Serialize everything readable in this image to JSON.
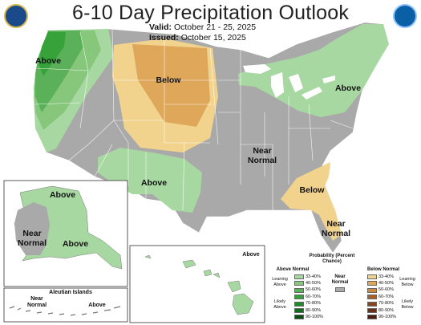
{
  "title": "6-10 Day Precipitation Outlook",
  "valid": {
    "label": "Valid:",
    "value": "October 21 - 25, 2025"
  },
  "issued": {
    "label": "Issued:",
    "value": "October 15, 2025"
  },
  "map_labels": {
    "conus_above_nw": "Above",
    "conus_below_plains": "Below",
    "conus_above_ne": "Above",
    "conus_above_sw": "Above",
    "conus_near_normal_central": "Near Normal",
    "conus_below_se": "Below",
    "conus_near_normal_fl": "Near Normal",
    "ak_above_n": "Above",
    "ak_near_normal": "Near Normal",
    "ak_above_s": "Above",
    "hi_above": "Above",
    "aleutian_title": "Aleutian Islands",
    "aleutian_near_normal": "Near Normal",
    "aleutian_above": "Above"
  },
  "legend": {
    "title": "Probability (Percent Chance)",
    "above_header": "Above Normal",
    "near_header": "Near Normal",
    "below_header": "Below Normal",
    "leaning_above": "Leaning Above",
    "likely_above": "Likely Above",
    "leaning_below": "Leaning Below",
    "likely_below": "Likely Below",
    "bins": [
      "33-40%",
      "40-50%",
      "50-60%",
      "60-70%",
      "70-80%",
      "80-90%",
      "90-100%"
    ],
    "above_colors": [
      "#a7d8a1",
      "#86c77c",
      "#5bb15a",
      "#38a23a",
      "#1f8a2a",
      "#136b1d",
      "#0c4d14"
    ],
    "below_colors": [
      "#f2d38e",
      "#dfa75a",
      "#c98a3c",
      "#a5622b",
      "#86451f",
      "#683018",
      "#4a1e10"
    ],
    "near_color": "#a9a9a9"
  },
  "logos": {
    "left": "commerce-seal",
    "right": "noaa-logo"
  }
}
